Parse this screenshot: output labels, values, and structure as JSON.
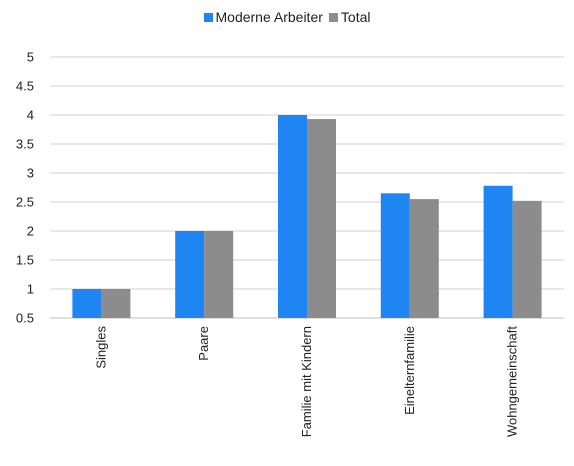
{
  "chart_data": {
    "type": "bar",
    "categories": [
      "Singles",
      "Paare",
      "Familie mit Kindern",
      "Einelternfamilie",
      "Wohngemeinschaft"
    ],
    "series": [
      {
        "name": "Moderne Arbeiter",
        "color": "#1f85f2",
        "values": [
          1.0,
          2.0,
          4.0,
          2.65,
          2.78
        ]
      },
      {
        "name": "Total",
        "color": "#8c8c8c",
        "values": [
          1.0,
          2.0,
          3.93,
          2.55,
          2.52
        ]
      }
    ],
    "yticks": [
      "0.5",
      "1",
      "1.5",
      "2",
      "2.5",
      "3",
      "3.5",
      "4",
      "4.5",
      "5"
    ],
    "ylim": [
      0.5,
      5
    ],
    "grid": true,
    "legend_position": "top"
  }
}
